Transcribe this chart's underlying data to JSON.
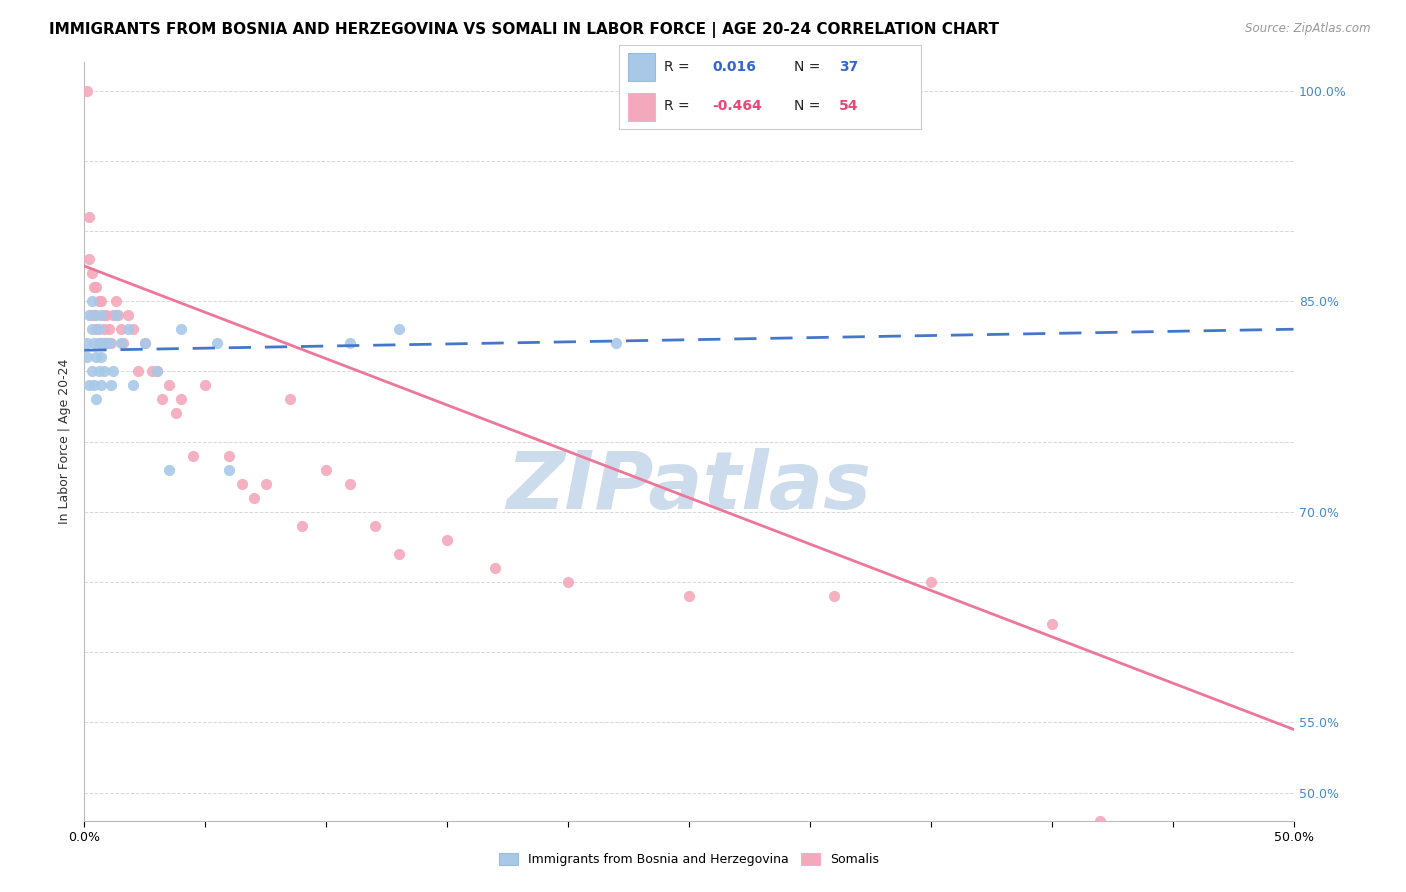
{
  "title": "IMMIGRANTS FROM BOSNIA AND HERZEGOVINA VS SOMALI IN LABOR FORCE | AGE 20-24 CORRELATION CHART",
  "source": "Source: ZipAtlas.com",
  "ylabel": "In Labor Force | Age 20-24",
  "xlim": [
    0.0,
    0.5
  ],
  "ylim": [
    0.48,
    1.02
  ],
  "xticks": [
    0.0,
    0.05,
    0.1,
    0.15,
    0.2,
    0.25,
    0.3,
    0.35,
    0.4,
    0.45,
    0.5
  ],
  "xticklabels": [
    "0.0%",
    "",
    "",
    "",
    "",
    "",
    "",
    "",
    "",
    "",
    "50.0%"
  ],
  "ytick_values": [
    0.5,
    0.55,
    0.6,
    0.65,
    0.7,
    0.75,
    0.8,
    0.85,
    0.9,
    0.95,
    1.0
  ],
  "ytick_labels_right": [
    "50.0%",
    "55.0%",
    "",
    "",
    "70.0%",
    "",
    "",
    "85.0%",
    "",
    "",
    "100.0%"
  ],
  "grid_color": "#d8d8d8",
  "bg_color": "#ffffff",
  "bosnia_color": "#a8c8e8",
  "somali_color": "#f4a8bc",
  "bosnia_line_color": "#4477cc",
  "somali_line_color": "#ee7799",
  "bosnia_R": "0.016",
  "bosnia_N": "37",
  "somali_R": "-0.464",
  "somali_N": "54",
  "bosnia_scatter_x": [
    0.001,
    0.001,
    0.002,
    0.002,
    0.003,
    0.003,
    0.003,
    0.004,
    0.004,
    0.005,
    0.005,
    0.005,
    0.006,
    0.006,
    0.006,
    0.007,
    0.007,
    0.007,
    0.008,
    0.008,
    0.009,
    0.01,
    0.011,
    0.012,
    0.013,
    0.015,
    0.018,
    0.02,
    0.025,
    0.03,
    0.035,
    0.04,
    0.055,
    0.06,
    0.11,
    0.13,
    0.22
  ],
  "bosnia_scatter_y": [
    0.82,
    0.81,
    0.84,
    0.79,
    0.83,
    0.8,
    0.85,
    0.82,
    0.79,
    0.84,
    0.81,
    0.78,
    0.83,
    0.8,
    0.82,
    0.84,
    0.81,
    0.79,
    0.82,
    0.8,
    0.82,
    0.82,
    0.79,
    0.8,
    0.84,
    0.82,
    0.83,
    0.79,
    0.82,
    0.8,
    0.73,
    0.83,
    0.82,
    0.73,
    0.82,
    0.83,
    0.82
  ],
  "somali_scatter_x": [
    0.001,
    0.002,
    0.002,
    0.003,
    0.003,
    0.004,
    0.004,
    0.005,
    0.005,
    0.006,
    0.006,
    0.007,
    0.007,
    0.008,
    0.008,
    0.009,
    0.009,
    0.01,
    0.011,
    0.012,
    0.013,
    0.014,
    0.015,
    0.016,
    0.018,
    0.02,
    0.022,
    0.025,
    0.028,
    0.03,
    0.032,
    0.035,
    0.038,
    0.04,
    0.045,
    0.05,
    0.06,
    0.065,
    0.07,
    0.075,
    0.085,
    0.09,
    0.1,
    0.11,
    0.12,
    0.13,
    0.15,
    0.17,
    0.2,
    0.25,
    0.31,
    0.35,
    0.4,
    0.42
  ],
  "somali_scatter_y": [
    1.0,
    0.88,
    0.91,
    0.84,
    0.87,
    0.84,
    0.86,
    0.86,
    0.83,
    0.85,
    0.82,
    0.85,
    0.82,
    0.84,
    0.83,
    0.84,
    0.82,
    0.83,
    0.82,
    0.84,
    0.85,
    0.84,
    0.83,
    0.82,
    0.84,
    0.83,
    0.8,
    0.82,
    0.8,
    0.8,
    0.78,
    0.79,
    0.77,
    0.78,
    0.74,
    0.79,
    0.74,
    0.72,
    0.71,
    0.72,
    0.78,
    0.69,
    0.73,
    0.72,
    0.69,
    0.67,
    0.68,
    0.66,
    0.65,
    0.64,
    0.64,
    0.65,
    0.62,
    0.48
  ],
  "watermark": "ZIPatlas",
  "watermark_color": "#ccdcec",
  "title_fontsize": 11,
  "axis_label_fontsize": 9,
  "tick_fontsize": 9,
  "bosnia_trend_x": [
    0.0,
    0.5
  ],
  "bosnia_trend_y": [
    0.815,
    0.83
  ],
  "somali_trend_x": [
    0.0,
    0.5
  ],
  "somali_trend_y": [
    0.875,
    0.545
  ]
}
